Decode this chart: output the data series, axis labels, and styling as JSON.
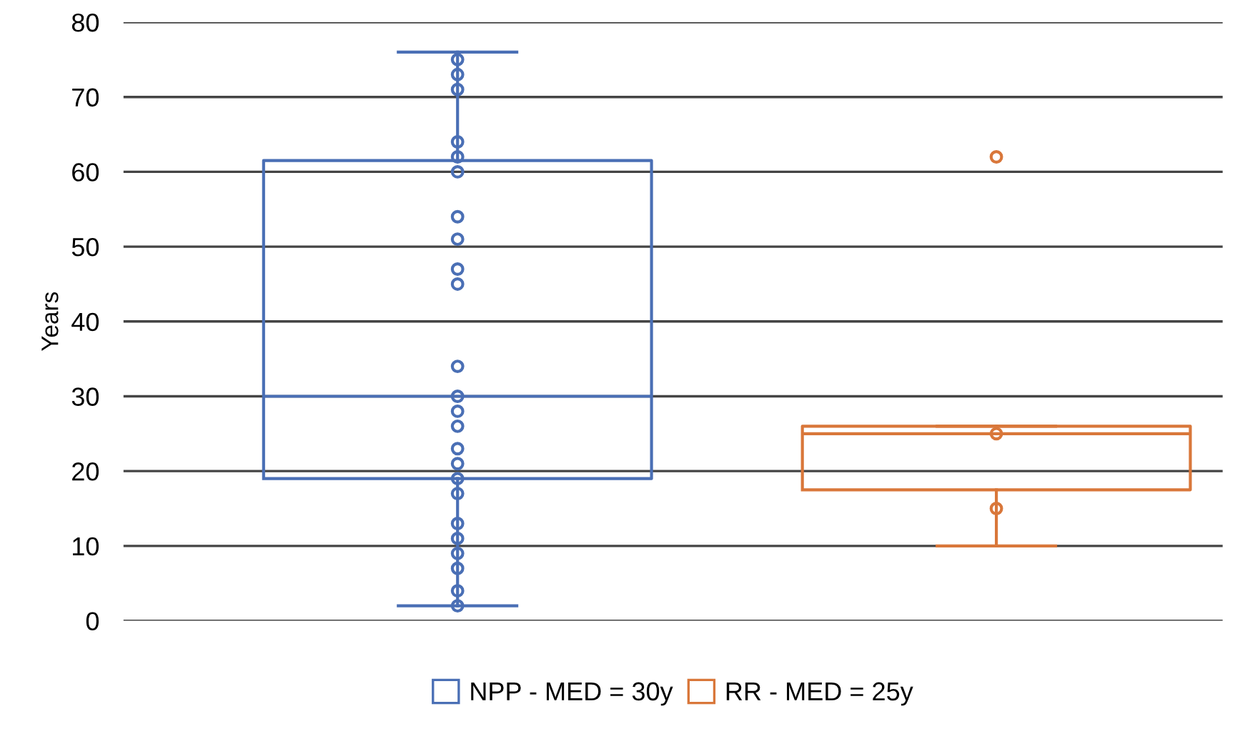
{
  "chart_data": {
    "type": "box",
    "ylabel": "Years",
    "categories": [
      null,
      null
    ],
    "ylim": [
      0,
      80
    ],
    "yticks": [
      0,
      10,
      20,
      30,
      40,
      50,
      60,
      70,
      80
    ],
    "grid": "y",
    "legend": "bottom",
    "series": [
      {
        "name": "NPP - MED = 30y",
        "color": "#4a6fb5",
        "boxes": [
          {
            "low": 2,
            "q1": 19,
            "median": 30,
            "q3": 61.5,
            "high": 76,
            "outliers": [
              75,
              73,
              71,
              64,
              62,
              60,
              54,
              51,
              47,
              45,
              34,
              30,
              28,
              26,
              23,
              21,
              19,
              17,
              13,
              11,
              9,
              7,
              4,
              2
            ]
          },
          null
        ]
      },
      {
        "name": "RR - MED = 25y",
        "color": "#d9773a",
        "boxes": [
          null,
          {
            "low": 10,
            "q1": 17.5,
            "median": 25,
            "q3": 26,
            "high": 26,
            "outliers": [
              62,
              25,
              15
            ]
          }
        ]
      }
    ]
  }
}
